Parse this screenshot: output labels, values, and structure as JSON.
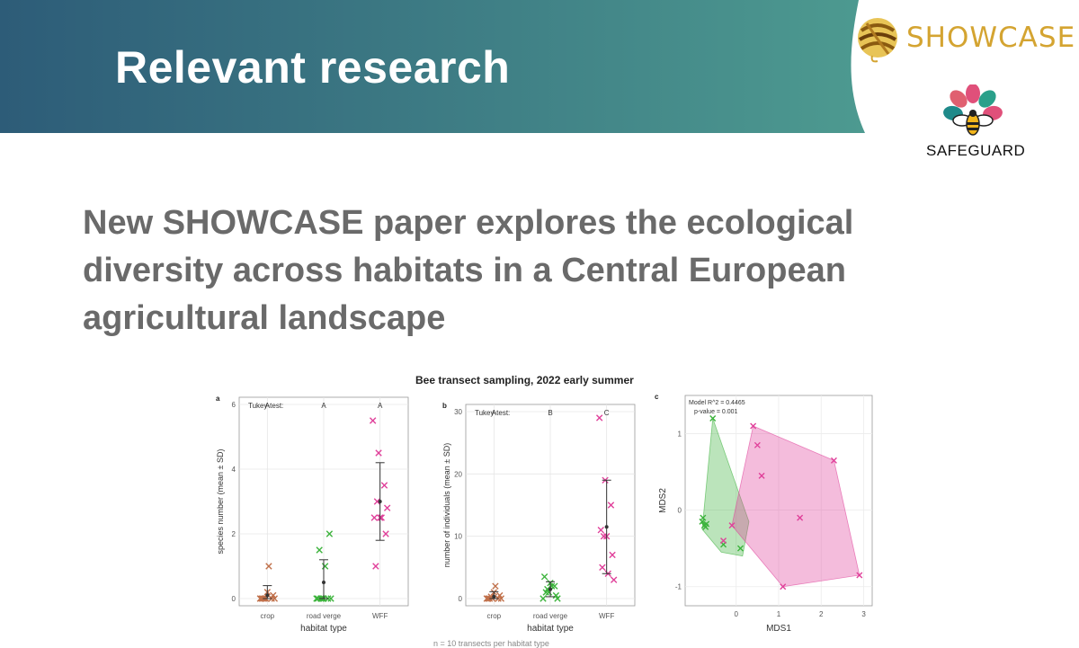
{
  "banner": {
    "title": "Relevant research",
    "bg_colors": [
      "#2d5c78",
      "#4d8f8f"
    ]
  },
  "logos": {
    "showcase": {
      "text": "SHOWCASE",
      "color": "#d4a431"
    },
    "safeguard": {
      "text": "SAFEGUARD"
    }
  },
  "headline": {
    "lines": [
      "New SHOWCASE paper explores the ecological",
      "diversity across habitats in a Central European",
      "agricultural landscape"
    ]
  },
  "figure": {
    "title": "Bee transect sampling, 2022 early summer",
    "footer_partial": "n = 10 transects per habitat type"
  },
  "chart_data": [
    {
      "type": "scatter",
      "panel_label": "a",
      "ylabel": "species number (mean ± SD)",
      "xlabel": "habitat type",
      "categories": [
        "crop",
        "road verge",
        "WFF"
      ],
      "ylim": [
        0,
        6
      ],
      "yticks": [
        0,
        2,
        4,
        6
      ],
      "tukey_header": "Tukey-test:",
      "tukey": [
        "A",
        "A",
        "A"
      ],
      "colors": [
        "#c0704a",
        "#3cb33c",
        "#e0409a"
      ],
      "points": [
        [
          0,
          0,
          0,
          0,
          0.2,
          0.1,
          0,
          1.0,
          0,
          0
        ],
        [
          0,
          0,
          0,
          0,
          0,
          2.0,
          1.5,
          1.0,
          0,
          0
        ],
        [
          5.5,
          4.5,
          3.5,
          2.5,
          2.5,
          2.0,
          1.0,
          2.5,
          2.8,
          3.0
        ]
      ],
      "mean": [
        0.1,
        0.5,
        3.0
      ],
      "sd": [
        0.3,
        0.7,
        1.2
      ]
    },
    {
      "type": "scatter",
      "panel_label": "b",
      "ylabel": "number of individuals (mean ± SD)",
      "xlabel": "habitat type",
      "categories": [
        "crop",
        "road verge",
        "WFF"
      ],
      "ylim": [
        0,
        30
      ],
      "yticks": [
        0,
        10,
        20,
        30
      ],
      "tukey_header": "Tukey-test:",
      "tukey": [
        "A",
        "B",
        "C"
      ],
      "colors": [
        "#c0704a",
        "#3cb33c",
        "#e0409a"
      ],
      "points": [
        [
          0,
          0,
          0,
          0,
          1,
          0.5,
          0,
          2,
          0,
          0.3
        ],
        [
          0,
          1,
          2,
          3.5,
          2.5,
          0.5,
          1,
          2,
          0,
          1.5
        ],
        [
          29,
          19,
          15,
          11,
          10,
          7,
          5,
          4,
          3,
          10
        ]
      ],
      "mean": [
        0.3,
        1.5,
        11.5
      ],
      "sd": [
        0.8,
        1.2,
        7.5
      ]
    },
    {
      "type": "scatter",
      "panel_label": "c",
      "xlabel": "MDS1",
      "ylabel": "MDS2",
      "xlim": [
        -1.2,
        3.2
      ],
      "ylim": [
        -1.25,
        1.5
      ],
      "xticks": [
        0,
        1,
        2,
        3
      ],
      "yticks": [
        -1,
        0,
        1
      ],
      "annotation": [
        "Model R^2 = 0.4465",
        "p-value = 0.001"
      ],
      "groups": [
        {
          "color": "#3cb33c",
          "hull": [
            [
              -0.55,
              1.2
            ],
            [
              0.3,
              -0.15
            ],
            [
              0.15,
              -0.6
            ],
            [
              -0.35,
              -0.55
            ],
            [
              -0.8,
              -0.25
            ]
          ],
          "points": [
            [
              -0.55,
              1.2
            ],
            [
              -0.8,
              -0.15
            ],
            [
              -0.75,
              -0.2
            ],
            [
              -0.7,
              -0.18
            ],
            [
              -0.78,
              -0.1
            ],
            [
              -0.72,
              -0.22
            ],
            [
              0.1,
              -0.5
            ],
            [
              -0.3,
              -0.45
            ]
          ]
        },
        {
          "color": "#e0409a",
          "hull": [
            [
              0.4,
              1.1
            ],
            [
              2.3,
              0.65
            ],
            [
              2.9,
              -0.85
            ],
            [
              1.1,
              -1.0
            ],
            [
              -0.1,
              -0.2
            ]
          ],
          "points": [
            [
              0.4,
              1.1
            ],
            [
              0.5,
              0.85
            ],
            [
              0.6,
              0.45
            ],
            [
              2.3,
              0.65
            ],
            [
              2.9,
              -0.85
            ],
            [
              1.1,
              -1.0
            ],
            [
              -0.1,
              -0.2
            ],
            [
              1.5,
              -0.1
            ],
            [
              -0.3,
              -0.4
            ]
          ]
        }
      ]
    }
  ]
}
